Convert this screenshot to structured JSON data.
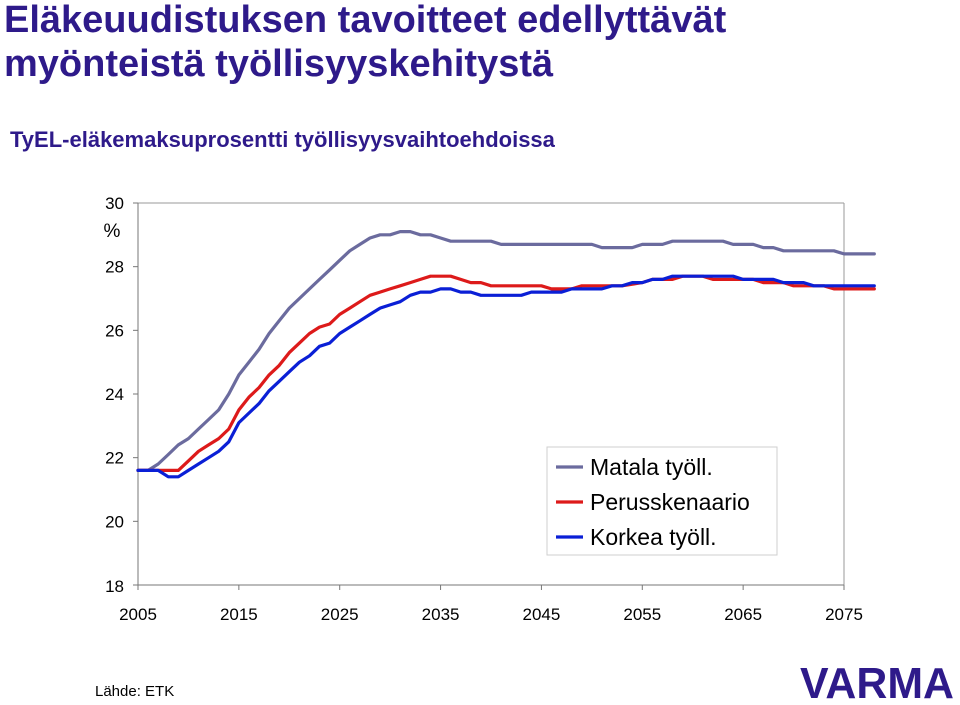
{
  "header": {
    "title_line1": "Eläkeuudistuksen tavoitteet edellyttävät",
    "title_line2": "myönteistä työllisyyskehitystä"
  },
  "chart_data": {
    "type": "line",
    "title": "TyEL-eläkemaksuprosentti työllisyysvaihtoehdoissa",
    "xlabel": "",
    "ylabel": "%",
    "xlim": [
      2005,
      2075
    ],
    "ylim": [
      18,
      30
    ],
    "x_ticks": [
      "2005",
      "2015",
      "2025",
      "2035",
      "2045",
      "2055",
      "2065",
      "2075"
    ],
    "y_ticks": [
      "20",
      "22",
      "24",
      "26",
      "28",
      "30"
    ],
    "y_tick_floor": "18",
    "grid": false,
    "legend": "inside-bottom-right",
    "series": [
      {
        "name": "Matala työll.",
        "color": "#6b6b9e",
        "points": [
          [
            2005,
            21.6
          ],
          [
            2006,
            21.6
          ],
          [
            2007,
            21.8
          ],
          [
            2008,
            22.1
          ],
          [
            2009,
            22.4
          ],
          [
            2010,
            22.6
          ],
          [
            2011,
            22.9
          ],
          [
            2012,
            23.2
          ],
          [
            2013,
            23.5
          ],
          [
            2014,
            24.0
          ],
          [
            2015,
            24.6
          ],
          [
            2016,
            25.0
          ],
          [
            2017,
            25.4
          ],
          [
            2018,
            25.9
          ],
          [
            2019,
            26.3
          ],
          [
            2020,
            26.7
          ],
          [
            2021,
            27.0
          ],
          [
            2022,
            27.3
          ],
          [
            2023,
            27.6
          ],
          [
            2024,
            27.9
          ],
          [
            2025,
            28.2
          ],
          [
            2026,
            28.5
          ],
          [
            2027,
            28.7
          ],
          [
            2028,
            28.9
          ],
          [
            2029,
            29.0
          ],
          [
            2030,
            29.0
          ],
          [
            2031,
            29.1
          ],
          [
            2032,
            29.1
          ],
          [
            2033,
            29.0
          ],
          [
            2034,
            29.0
          ],
          [
            2035,
            28.9
          ],
          [
            2036,
            28.8
          ],
          [
            2037,
            28.8
          ],
          [
            2038,
            28.8
          ],
          [
            2040,
            28.8
          ],
          [
            2041,
            28.7
          ],
          [
            2050,
            28.7
          ],
          [
            2051,
            28.6
          ],
          [
            2054,
            28.6
          ],
          [
            2055,
            28.7
          ],
          [
            2057,
            28.7
          ],
          [
            2058,
            28.8
          ],
          [
            2063,
            28.8
          ],
          [
            2064,
            28.7
          ],
          [
            2066,
            28.7
          ],
          [
            2067,
            28.6
          ],
          [
            2068,
            28.6
          ],
          [
            2069,
            28.5
          ],
          [
            2074,
            28.5
          ],
          [
            2075,
            28.4
          ],
          [
            2078,
            28.4
          ]
        ]
      },
      {
        "name": "Perusskenaario",
        "color": "#dd1a1a",
        "points": [
          [
            2005,
            21.6
          ],
          [
            2007,
            21.6
          ],
          [
            2009,
            21.6
          ],
          [
            2010,
            21.9
          ],
          [
            2011,
            22.2
          ],
          [
            2012,
            22.4
          ],
          [
            2013,
            22.6
          ],
          [
            2014,
            22.9
          ],
          [
            2015,
            23.5
          ],
          [
            2016,
            23.9
          ],
          [
            2017,
            24.2
          ],
          [
            2018,
            24.6
          ],
          [
            2019,
            24.9
          ],
          [
            2020,
            25.3
          ],
          [
            2021,
            25.6
          ],
          [
            2022,
            25.9
          ],
          [
            2023,
            26.1
          ],
          [
            2024,
            26.2
          ],
          [
            2025,
            26.5
          ],
          [
            2026,
            26.7
          ],
          [
            2027,
            26.9
          ],
          [
            2028,
            27.1
          ],
          [
            2029,
            27.2
          ],
          [
            2030,
            27.3
          ],
          [
            2031,
            27.4
          ],
          [
            2032,
            27.5
          ],
          [
            2033,
            27.6
          ],
          [
            2034,
            27.7
          ],
          [
            2035,
            27.7
          ],
          [
            2036,
            27.7
          ],
          [
            2037,
            27.6
          ],
          [
            2038,
            27.5
          ],
          [
            2039,
            27.5
          ],
          [
            2040,
            27.4
          ],
          [
            2045,
            27.4
          ],
          [
            2046,
            27.3
          ],
          [
            2048,
            27.3
          ],
          [
            2049,
            27.4
          ],
          [
            2052,
            27.4
          ],
          [
            2053,
            27.4
          ],
          [
            2055,
            27.5
          ],
          [
            2056,
            27.6
          ],
          [
            2058,
            27.6
          ],
          [
            2059,
            27.7
          ],
          [
            2061,
            27.7
          ],
          [
            2062,
            27.6
          ],
          [
            2066,
            27.6
          ],
          [
            2067,
            27.5
          ],
          [
            2069,
            27.5
          ],
          [
            2070,
            27.4
          ],
          [
            2073,
            27.4
          ],
          [
            2074,
            27.3
          ],
          [
            2078,
            27.3
          ]
        ]
      },
      {
        "name": "Korkea työll.",
        "color": "#0a1fd6",
        "points": [
          [
            2005,
            21.6
          ],
          [
            2007,
            21.6
          ],
          [
            2008,
            21.4
          ],
          [
            2009,
            21.4
          ],
          [
            2010,
            21.6
          ],
          [
            2011,
            21.8
          ],
          [
            2012,
            22.0
          ],
          [
            2013,
            22.2
          ],
          [
            2014,
            22.5
          ],
          [
            2015,
            23.1
          ],
          [
            2016,
            23.4
          ],
          [
            2017,
            23.7
          ],
          [
            2018,
            24.1
          ],
          [
            2019,
            24.4
          ],
          [
            2020,
            24.7
          ],
          [
            2021,
            25.0
          ],
          [
            2022,
            25.2
          ],
          [
            2023,
            25.5
          ],
          [
            2024,
            25.6
          ],
          [
            2025,
            25.9
          ],
          [
            2026,
            26.1
          ],
          [
            2027,
            26.3
          ],
          [
            2028,
            26.5
          ],
          [
            2029,
            26.7
          ],
          [
            2030,
            26.8
          ],
          [
            2031,
            26.9
          ],
          [
            2032,
            27.1
          ],
          [
            2033,
            27.2
          ],
          [
            2034,
            27.2
          ],
          [
            2035,
            27.3
          ],
          [
            2036,
            27.3
          ],
          [
            2037,
            27.2
          ],
          [
            2038,
            27.2
          ],
          [
            2039,
            27.1
          ],
          [
            2043,
            27.1
          ],
          [
            2044,
            27.2
          ],
          [
            2047,
            27.2
          ],
          [
            2048,
            27.3
          ],
          [
            2051,
            27.3
          ],
          [
            2052,
            27.4
          ],
          [
            2053,
            27.4
          ],
          [
            2054,
            27.5
          ],
          [
            2055,
            27.5
          ],
          [
            2056,
            27.6
          ],
          [
            2057,
            27.6
          ],
          [
            2058,
            27.7
          ],
          [
            2064,
            27.7
          ],
          [
            2065,
            27.6
          ],
          [
            2068,
            27.6
          ],
          [
            2069,
            27.5
          ],
          [
            2071,
            27.5
          ],
          [
            2072,
            27.4
          ],
          [
            2078,
            27.4
          ]
        ]
      }
    ]
  },
  "footer": {
    "source": "Lähde: ETK",
    "logo_text": "VARMA",
    "logo_color": "#2e1a8a"
  }
}
